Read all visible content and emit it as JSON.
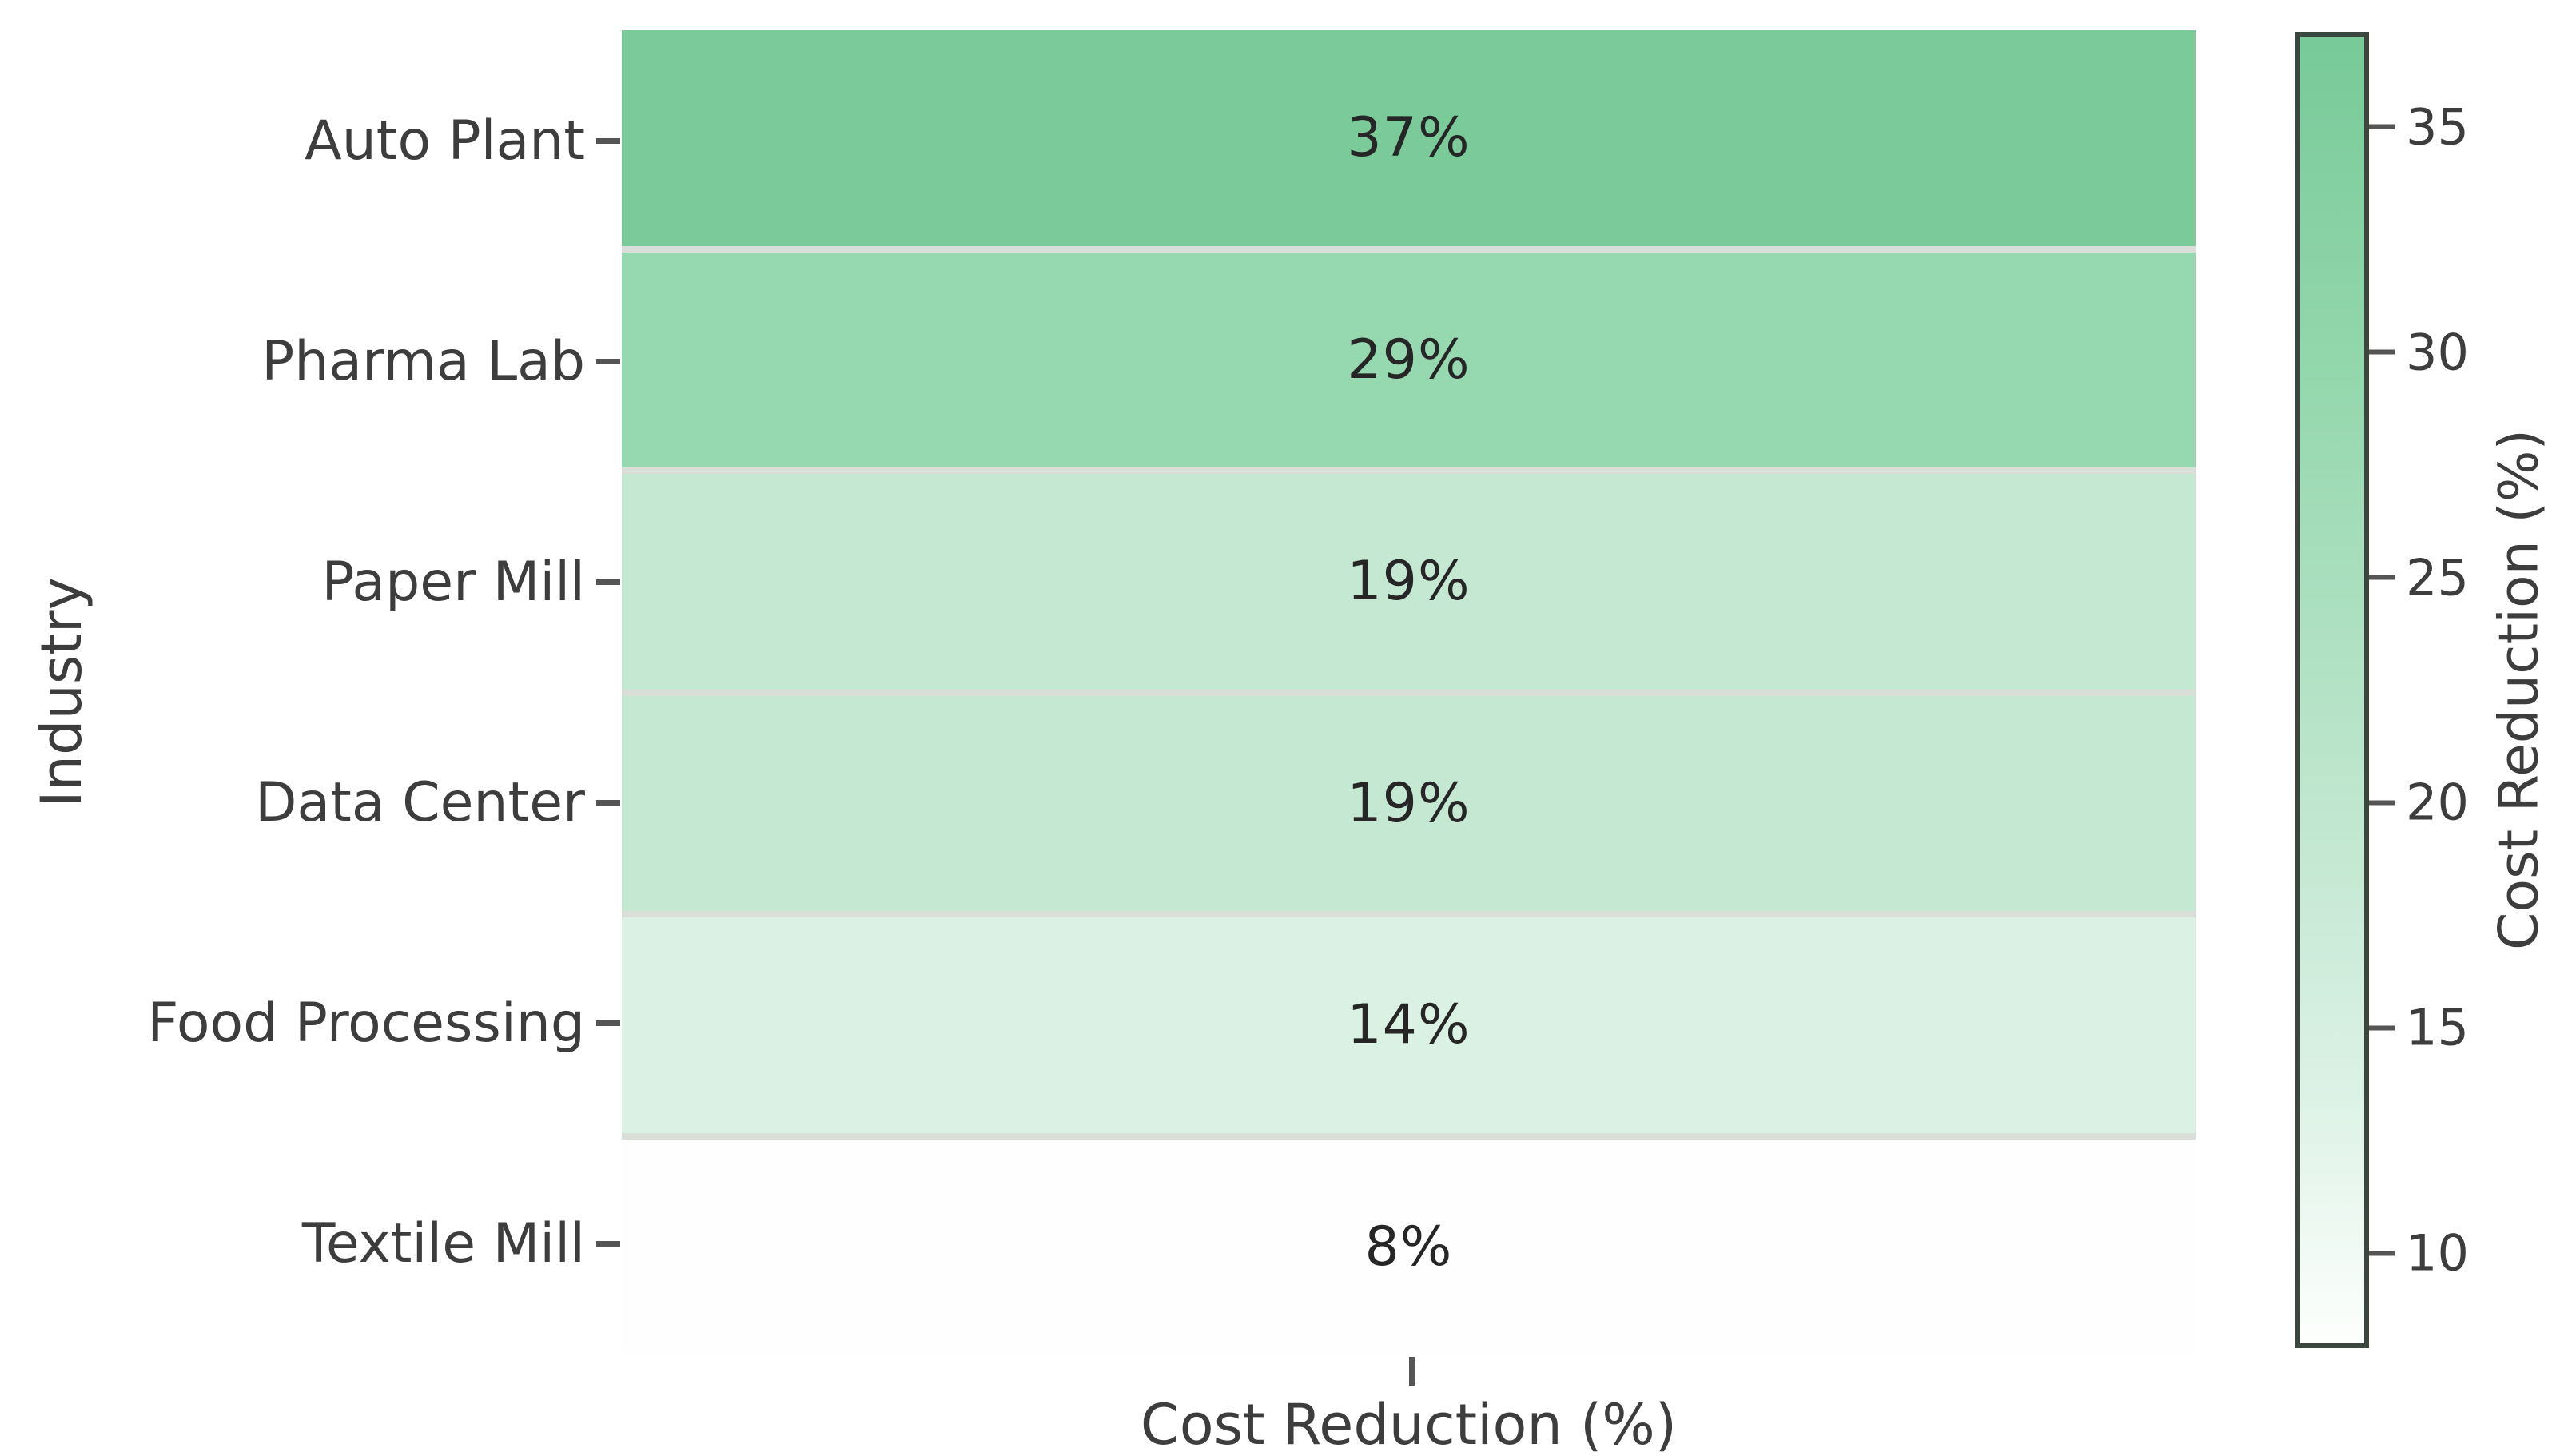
{
  "figure": {
    "background": "#ffffff"
  },
  "chart_data": {
    "type": "heatmap",
    "title": "",
    "xlabel": "Cost Reduction (%)",
    "ylabel": "Industry",
    "x_categories": [
      "Cost Reduction (%)"
    ],
    "values": [
      37,
      29,
      19,
      19,
      14,
      8
    ],
    "cells": [
      {
        "row": "Auto Plant",
        "value": 37,
        "label": "37%",
        "color": "#7bcb9a"
      },
      {
        "row": "Pharma Lab",
        "value": 29,
        "label": "29%",
        "color": "#96d8af"
      },
      {
        "row": "Paper Mill",
        "value": 19,
        "label": "19%",
        "color": "#c4e8d2"
      },
      {
        "row": "Data Center",
        "value": 19,
        "label": "19%",
        "color": "#c4e8d2"
      },
      {
        "row": "Food Processing",
        "value": 14,
        "label": "14%",
        "color": "#daf1e4"
      },
      {
        "row": "Textile Mill",
        "value": 8,
        "label": "8%",
        "color": "#fdfefd"
      }
    ],
    "colorbar": {
      "label": "Cost Reduction (%)",
      "ticks": [
        35,
        30,
        25,
        20,
        15,
        10
      ],
      "vmin": 8,
      "vmax": 37,
      "gradient_stops": [
        {
          "pos": 0,
          "color": "#78ca98"
        },
        {
          "pos": 27.6,
          "color": "#96d8af"
        },
        {
          "pos": 62.1,
          "color": "#c4e8d2"
        },
        {
          "pos": 79.3,
          "color": "#daf1e4"
        },
        {
          "pos": 100,
          "color": "#fdfffd"
        }
      ]
    },
    "colors": {
      "annotation_text": "#262626",
      "axis_text": "#3d3d3d",
      "cell_separator": "#d9ded9",
      "colorbar_border": "#3b463f"
    }
  }
}
